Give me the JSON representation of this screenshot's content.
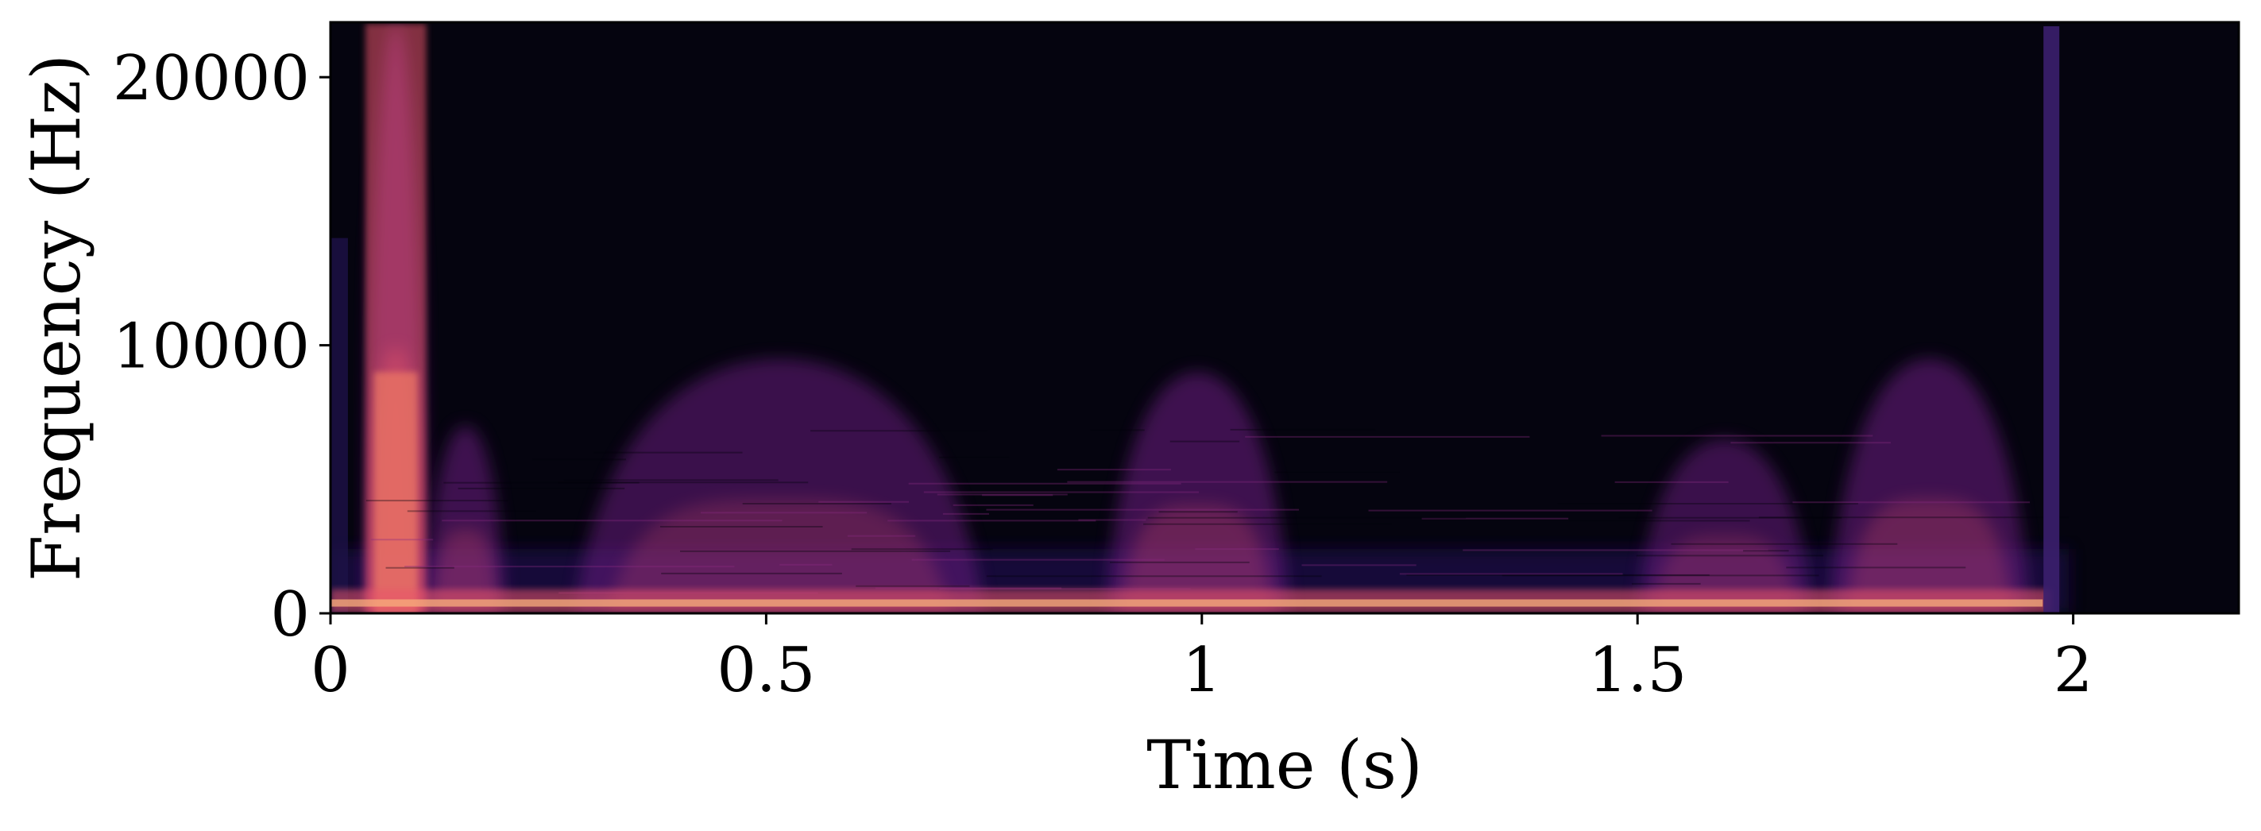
{
  "chart_data": {
    "type": "heatmap",
    "subtype": "spectrogram",
    "xlabel": "Time (s)",
    "ylabel": "Frequency (Hz)",
    "xlim": [
      0,
      2.19
    ],
    "ylim": [
      0,
      22050
    ],
    "x_ticks": [
      0,
      0.5,
      1,
      1.5,
      2
    ],
    "x_tick_labels": [
      "0",
      "0.5",
      "1",
      "1.5",
      "2"
    ],
    "y_ticks": [
      0,
      10000,
      20000
    ],
    "y_tick_labels": [
      "0",
      "10000",
      "20000"
    ],
    "colormap": "magma",
    "colors": {
      "background": "#05040f",
      "low": "#1d1147",
      "mid": "#6b1f80",
      "high": "#e9546a",
      "peak": "#fcfdbf",
      "burst_line": "#3b1f6e"
    },
    "events": [
      {
        "t_start": 0.04,
        "t_end": 0.11,
        "max_freq_hz": 22000,
        "intensity": 0.95,
        "label": ""
      },
      {
        "t_start": 0.11,
        "t_end": 0.2,
        "max_freq_hz": 7000,
        "intensity": 0.55,
        "label": ""
      },
      {
        "t_start": 0.28,
        "t_end": 0.75,
        "max_freq_hz": 9500,
        "intensity": 0.45,
        "label": ""
      },
      {
        "t_start": 0.89,
        "t_end": 1.1,
        "max_freq_hz": 9000,
        "intensity": 0.55,
        "label": ""
      },
      {
        "t_start": 1.5,
        "t_end": 1.7,
        "max_freq_hz": 6500,
        "intensity": 0.45,
        "label": ""
      },
      {
        "t_start": 1.72,
        "t_end": 1.95,
        "max_freq_hz": 9500,
        "intensity": 0.55,
        "label": ""
      }
    ],
    "low_band_hz": 1500,
    "vertical_line_time_s": 1.975,
    "signal_end_s": 1.995,
    "grid": false
  }
}
